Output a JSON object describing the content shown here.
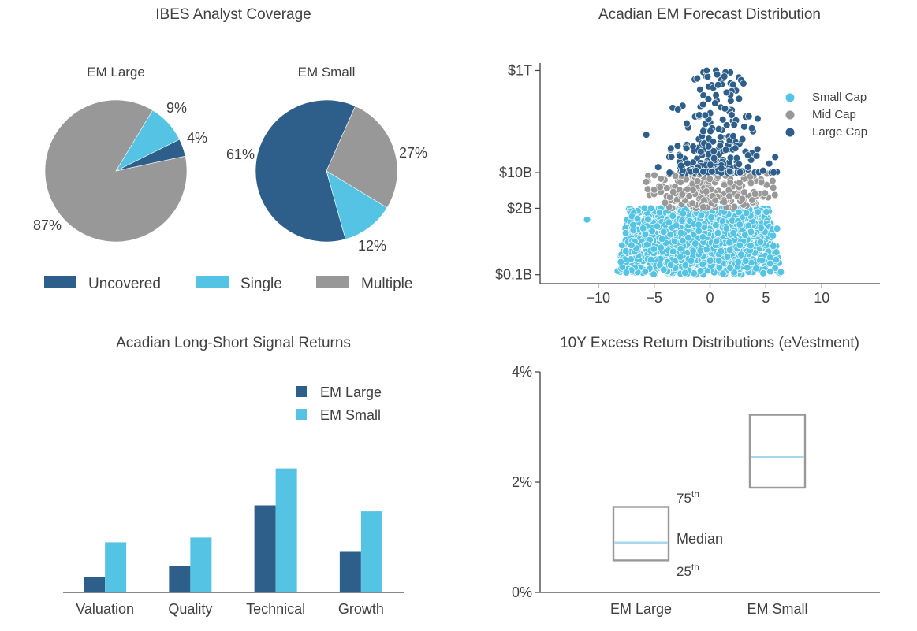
{
  "colors": {
    "dark": "#2e5f8a",
    "light": "#55c4e4",
    "gray": "#989898",
    "axis": "#404040",
    "median": "#a8d8ea",
    "box": "#999999"
  },
  "chart_data": [
    {
      "id": "coverage",
      "type": "pie",
      "title": "IBES Analyst Coverage",
      "legend": [
        "Uncovered",
        "Single",
        "Multiple"
      ],
      "pies": [
        {
          "name": "EM Large",
          "slices": [
            {
              "label": "Uncovered",
              "value": 4,
              "text": "4%"
            },
            {
              "label": "Single",
              "value": 9,
              "text": "9%"
            },
            {
              "label": "Multiple",
              "value": 87,
              "text": "87%"
            }
          ]
        },
        {
          "name": "EM Small",
          "slices": [
            {
              "label": "Uncovered",
              "value": 61,
              "text": "61%"
            },
            {
              "label": "Single",
              "value": 12,
              "text": "12%"
            },
            {
              "label": "Multiple",
              "value": 27,
              "text": "27%"
            }
          ]
        }
      ]
    },
    {
      "id": "forecast",
      "type": "scatter",
      "title": "Acadian EM Forecast Distribution",
      "xticks": [
        "−10",
        "−5",
        "0",
        "5",
        "10"
      ],
      "xtick_values": [
        -10,
        -5,
        0,
        5,
        10
      ],
      "xlim": [
        -15.2,
        15.2
      ],
      "yscale": "log",
      "ylim_usd_bn": [
        0.067,
        1400
      ],
      "yticks": [
        {
          "label": "$1T",
          "value_bn": 1000
        },
        {
          "label": "$10B",
          "value_bn": 10
        },
        {
          "label": "$2B",
          "value_bn": 2
        },
        {
          "label": "$0.1B",
          "value_bn": 0.1
        }
      ],
      "series": [
        {
          "name": "Small Cap",
          "color_key": "light",
          "cap_range_bn": [
            0.1,
            2.0
          ],
          "approx_points": 1400,
          "x_mean": -1.0,
          "x_spread": 3.6
        },
        {
          "name": "Mid Cap",
          "color_key": "gray",
          "cap_range_bn": [
            2.0,
            10.0
          ],
          "approx_points": 230,
          "x_mean": 0.0,
          "x_spread": 2.8
        },
        {
          "name": "Large Cap",
          "color_key": "dark",
          "cap_range_bn": [
            10.0,
            1000.0
          ],
          "approx_points": 260,
          "x_mean": 0.6,
          "x_spread": 2.4
        }
      ],
      "outliers": [
        {
          "series": "Small Cap",
          "x": -11.0,
          "cap_bn": 1.2
        },
        {
          "series": "Small Cap",
          "x": 6.0,
          "cap_bn": 0.8
        },
        {
          "series": "Large Cap",
          "x": -0.3,
          "cap_bn": 1000
        },
        {
          "series": "Large Cap",
          "x": 2.6,
          "cap_bn": 280
        },
        {
          "series": "Large Cap",
          "x": -5.7,
          "cap_bn": 55
        },
        {
          "series": "Large Cap",
          "x": 5.3,
          "cap_bn": 15
        }
      ]
    },
    {
      "id": "signals",
      "type": "bar",
      "title": "Acadian Long-Short Signal Returns",
      "categories": [
        "Valuation",
        "Quality",
        "Technical",
        "Growth"
      ],
      "series": [
        {
          "name": "EM Large",
          "color_key": "dark",
          "values": [
            0.13,
            0.22,
            0.73,
            0.34
          ]
        },
        {
          "name": "EM Small",
          "color_key": "light",
          "values": [
            0.42,
            0.46,
            1.04,
            0.68
          ]
        }
      ],
      "ylim": [
        0,
        1.85
      ]
    },
    {
      "id": "excess",
      "type": "box",
      "title": "10Y Excess Return Distributions (eVestment)",
      "categories": [
        "EM Large",
        "EM Small"
      ],
      "yticks": [
        "0%",
        "2%",
        "4%"
      ],
      "ytick_values": [
        0,
        2,
        4
      ],
      "ylim": [
        0,
        4
      ],
      "boxes": [
        {
          "name": "EM Large",
          "p25": 0.58,
          "median": 0.9,
          "p75": 1.55
        },
        {
          "name": "EM Small",
          "p25": 1.9,
          "median": 2.45,
          "p75": 3.22
        }
      ],
      "annotations": {
        "upper": "75",
        "upper_sup": "th",
        "median": "Median",
        "lower": "25",
        "lower_sup": "th"
      }
    }
  ]
}
